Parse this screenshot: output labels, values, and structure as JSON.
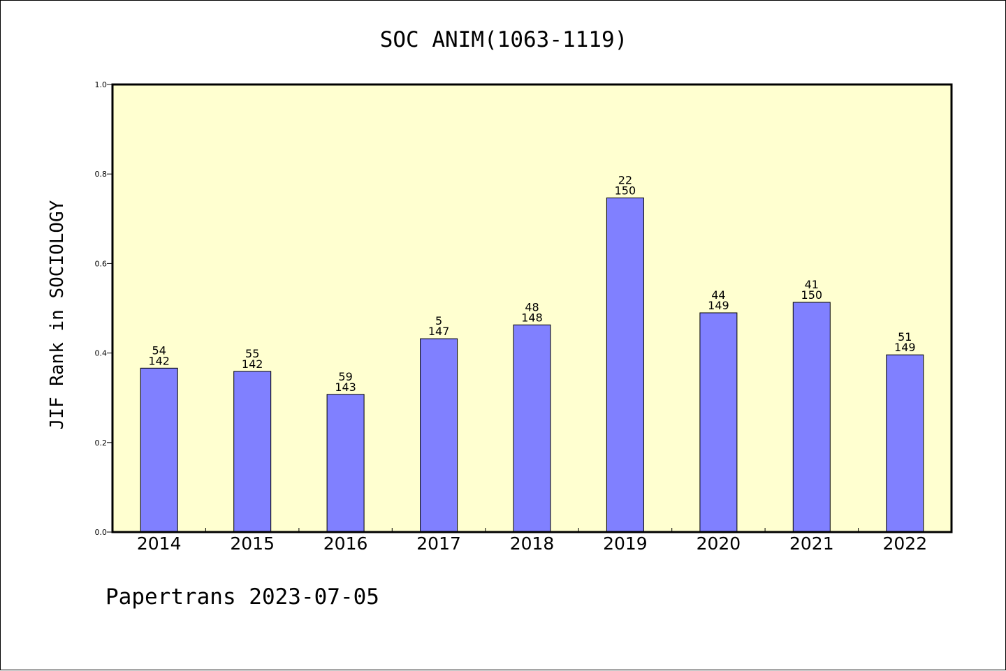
{
  "chart_data": {
    "type": "bar",
    "title": "SOC ANIM(1063-1119)",
    "ylabel": "JIF Rank in SOCIOLOGY",
    "xlabel": "",
    "ylim": [
      0.0,
      1.0
    ],
    "yticks": [
      "0.0",
      "0.2",
      "0.4",
      "0.6",
      "0.8",
      "1.0"
    ],
    "categories": [
      "2014",
      "2015",
      "2016",
      "2017",
      "2018",
      "2019",
      "2020",
      "2021",
      "2022"
    ],
    "values": [
      0.3662,
      0.3592,
      0.3077,
      0.432,
      0.4628,
      0.7467,
      0.4899,
      0.5133,
      0.396
    ],
    "ranks": [
      "54",
      "55",
      "59",
      "5",
      "48",
      "22",
      "44",
      "41",
      "51"
    ],
    "totals": [
      "142",
      "142",
      "143",
      "147",
      "148",
      "150",
      "149",
      "150",
      "149"
    ],
    "colors": {
      "bar": "#8080ff",
      "plot_background": "#ffffd0",
      "axis": "#000000"
    },
    "grid": false,
    "legend": "none"
  },
  "footer": {
    "text": "Papertrans 2023-07-05"
  }
}
